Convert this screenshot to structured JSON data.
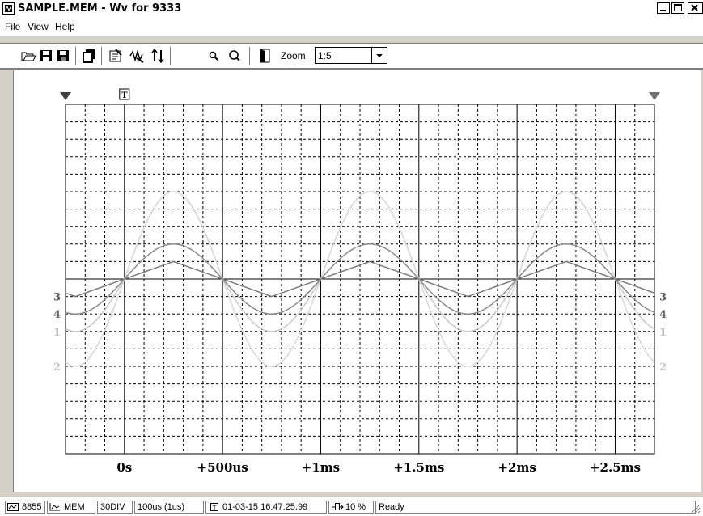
{
  "window": {
    "title": "SAMPLE.MEM - Wv for 9333"
  },
  "menu": [
    "File",
    "View",
    "Help"
  ],
  "toolbar": {
    "buttons": [
      "open-icon",
      "save-icon",
      "save-as-icon",
      "copy-icon",
      "properties-icon",
      "channel-icon",
      "scale-icon",
      "zoom-in-icon",
      "zoom-out-icon",
      "exit-icon"
    ],
    "zoom_label": "Zoom",
    "zoom_value": "1:5"
  },
  "plot": {
    "x_labels": [
      "0s",
      "+500us",
      "+1ms",
      "+1.5ms",
      "+2ms",
      "+2.5ms"
    ],
    "trigger_marker": "T",
    "channel_labels": [
      "3",
      "4",
      "1",
      "2"
    ],
    "colors": {
      "ch1": "#c8c8c8",
      "ch2": "#d8d8d8",
      "ch3": "#7a7a7a",
      "ch4": "#8a8a8a",
      "grid": "#000000",
      "background": "#ffffff"
    }
  },
  "chart_data": {
    "type": "line",
    "x_unit": "us",
    "x_range": [
      -300,
      2700
    ],
    "x_ticks": [
      0,
      500,
      1000,
      1500,
      2000,
      2500
    ],
    "x_tick_labels": [
      "0s",
      "+500us",
      "+1ms",
      "+1.5ms",
      "+2ms",
      "+2.5ms"
    ],
    "y_divisions": 20,
    "y_range": [
      -10,
      10
    ],
    "period_us": 1000,
    "series": [
      {
        "name": "1",
        "amplitude_div": 5.0,
        "dc_div": 0,
        "shape": "half-wave, positive half larger",
        "neg_amplitude_div": 3.0
      },
      {
        "name": "2",
        "amplitude_div": 5.0,
        "dc_div": 0,
        "shape": "sine",
        "neg_amplitude_div": 5.0
      },
      {
        "name": "3",
        "amplitude_div": 1.0,
        "dc_div": 0,
        "shape": "triangle",
        "neg_amplitude_div": 1.0
      },
      {
        "name": "4",
        "amplitude_div": 2.0,
        "dc_div": 0,
        "shape": "sine",
        "neg_amplitude_div": 2.0
      }
    ]
  },
  "statusbar": {
    "items": [
      "8855",
      "MEM",
      "30DIV",
      "100us (1us)",
      "01-03-15 16:47:25.99",
      "10 %",
      "Ready"
    ]
  }
}
